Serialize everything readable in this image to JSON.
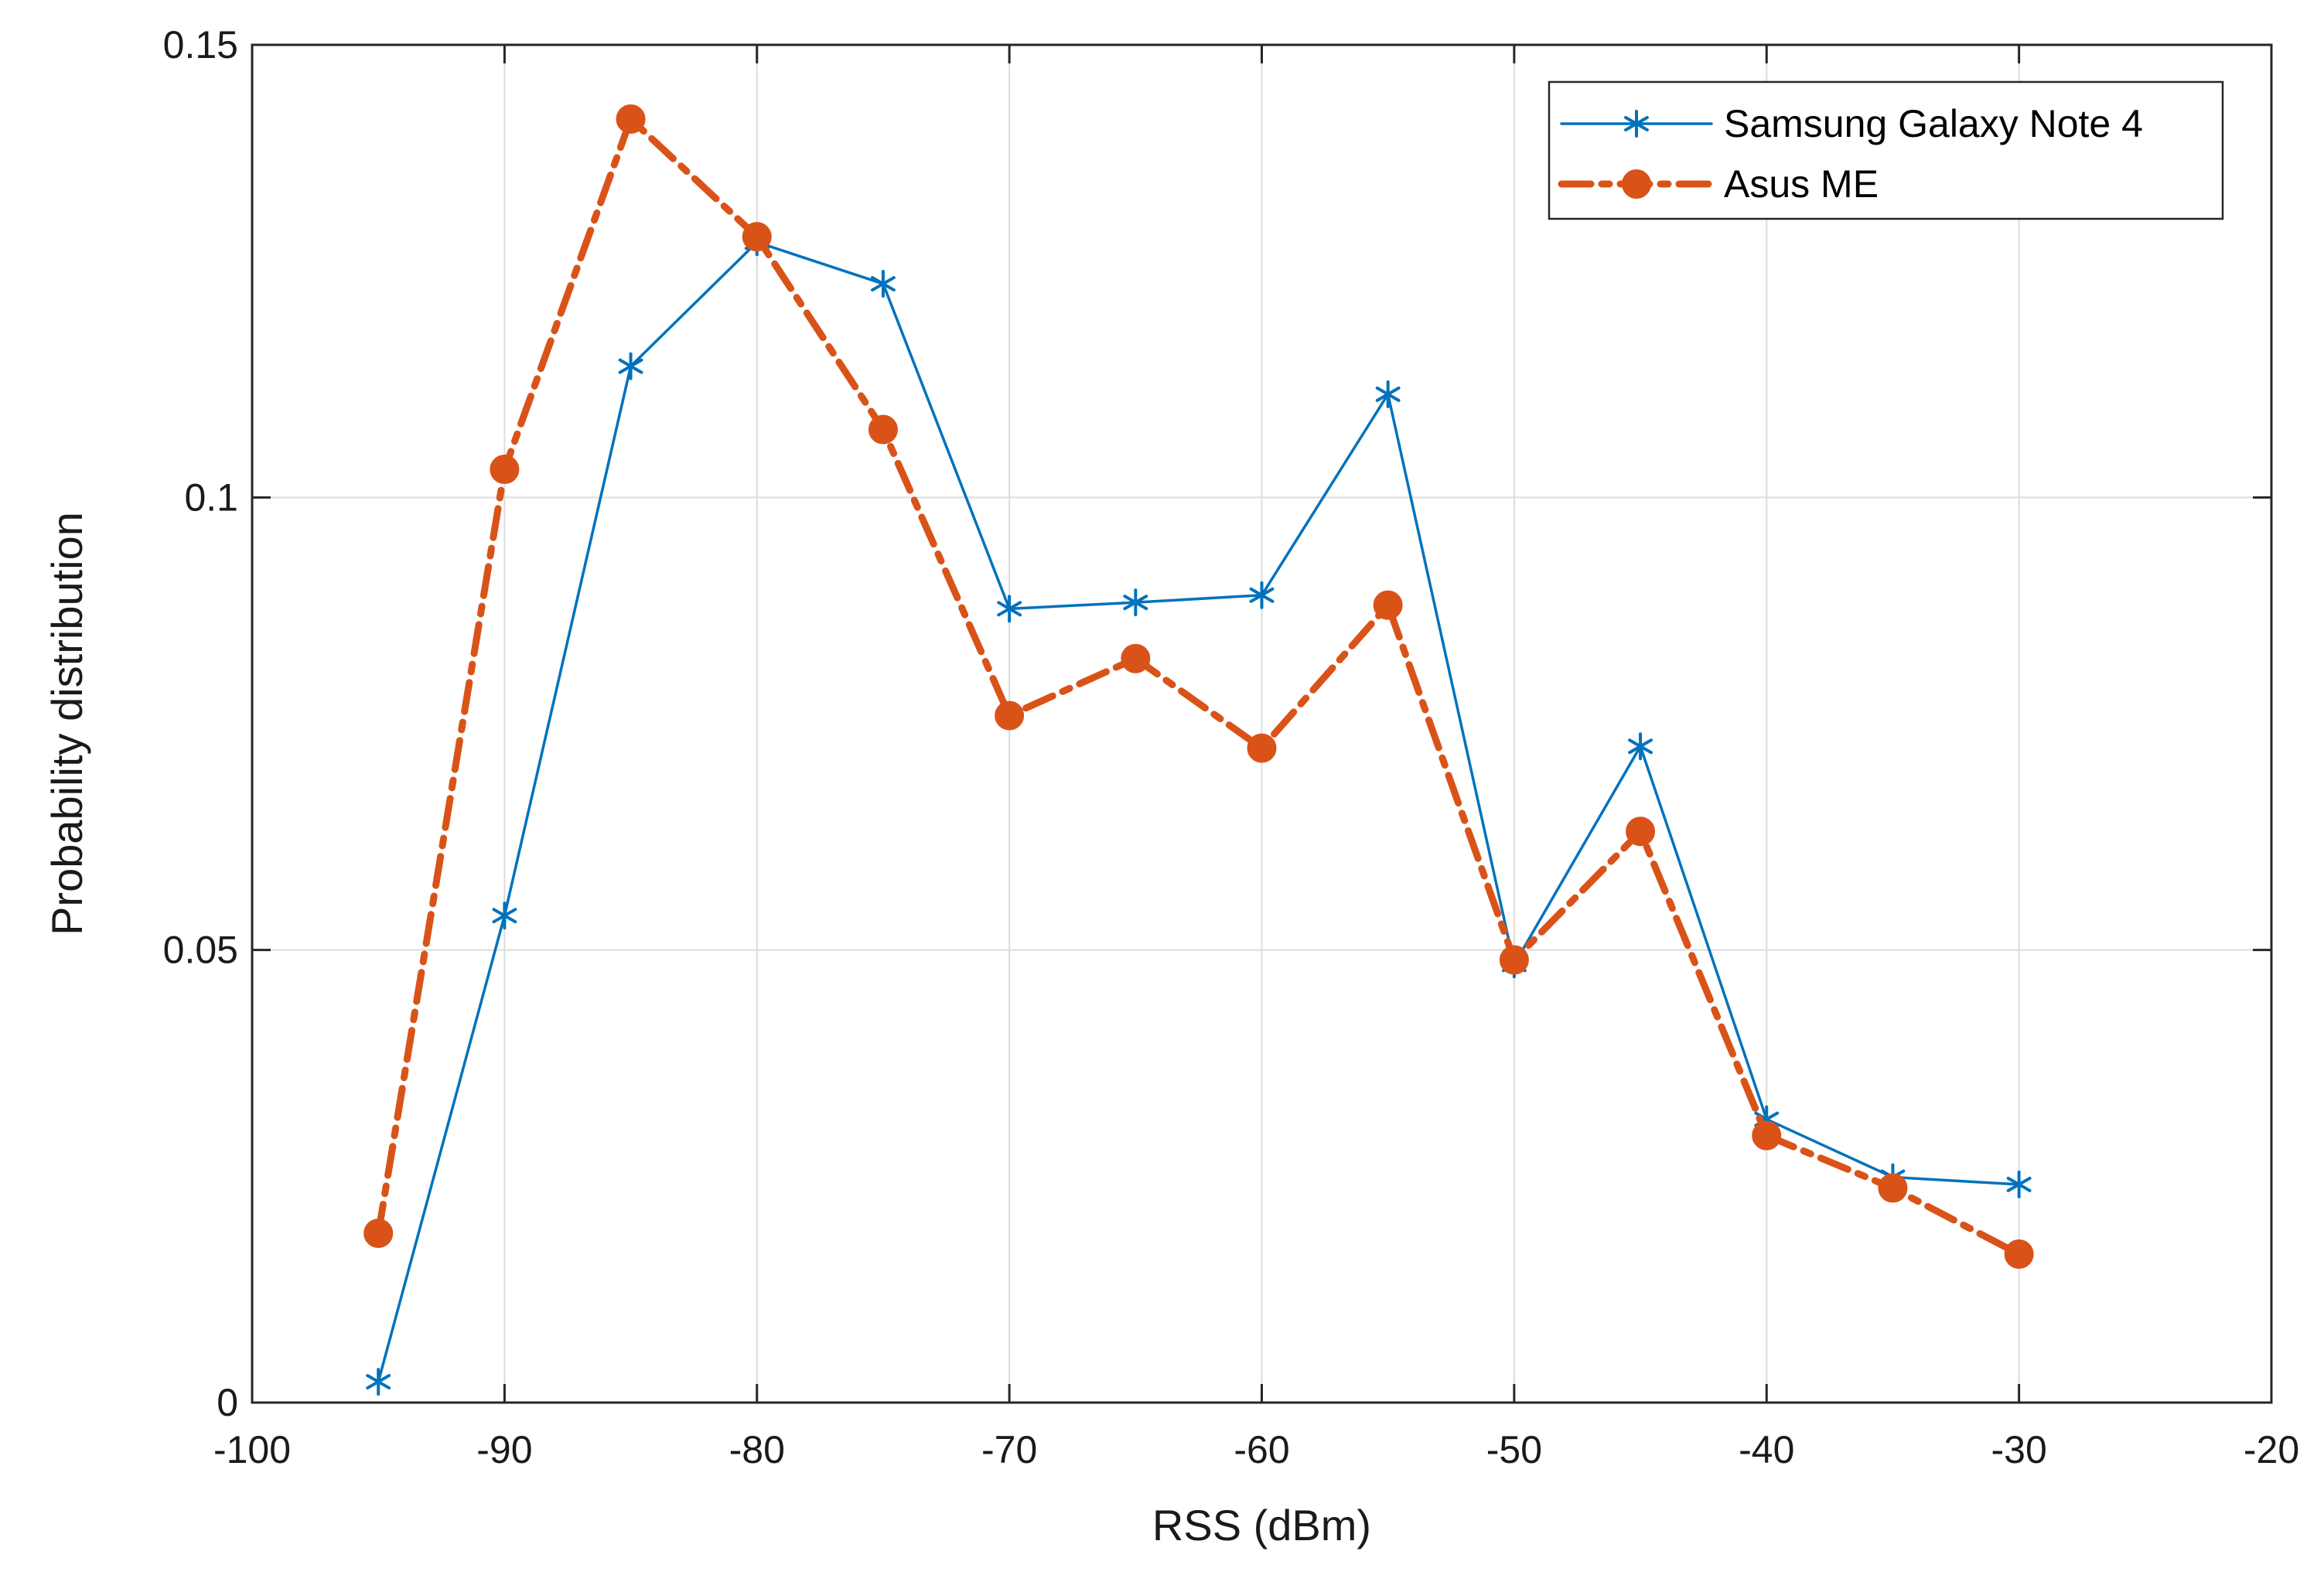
{
  "chart_data": {
    "type": "line",
    "title": "",
    "xlabel": "RSS (dBm)",
    "ylabel": "Probability distribution",
    "xlim": [
      -100,
      -20
    ],
    "ylim": [
      0,
      0.15
    ],
    "grid": true,
    "legend_position": "top-right",
    "xticks": [
      {
        "value": -100,
        "label": "-100"
      },
      {
        "value": -90,
        "label": "-90"
      },
      {
        "value": -80,
        "label": "-80"
      },
      {
        "value": -70,
        "label": "-70"
      },
      {
        "value": -60,
        "label": "-60"
      },
      {
        "value": -50,
        "label": "-50"
      },
      {
        "value": -40,
        "label": "-40"
      },
      {
        "value": -30,
        "label": "-30"
      },
      {
        "value": -20,
        "label": "-20"
      }
    ],
    "yticks": [
      {
        "value": 0,
        "label": "0"
      },
      {
        "value": 0.05,
        "label": "0.05"
      },
      {
        "value": 0.1,
        "label": "0.1"
      },
      {
        "value": 0.15,
        "label": "0.15"
      }
    ],
    "x": [
      -95,
      -90,
      -85,
      -80,
      -75,
      -70,
      -65,
      -60,
      -55,
      -50,
      -45,
      -40,
      -35,
      -30
    ],
    "series": [
      {
        "name": "Samsung Galaxy Note 4",
        "color": "#0072BD",
        "marker": "asterisk",
        "style": "solid",
        "values": [
          0.0023,
          0.0538,
          0.1145,
          0.1282,
          0.1236,
          0.0877,
          0.0884,
          0.0892,
          0.1114,
          0.0484,
          0.0725,
          0.0313,
          0.0249,
          0.0241
        ]
      },
      {
        "name": "Asus ME",
        "color": "#D95319",
        "marker": "circle",
        "style": "dash-dot",
        "values": [
          0.0187,
          0.1031,
          0.1418,
          0.1288,
          0.1075,
          0.0759,
          0.0822,
          0.0723,
          0.0881,
          0.0489,
          0.0631,
          0.0295,
          0.0237,
          0.0164
        ]
      }
    ]
  }
}
